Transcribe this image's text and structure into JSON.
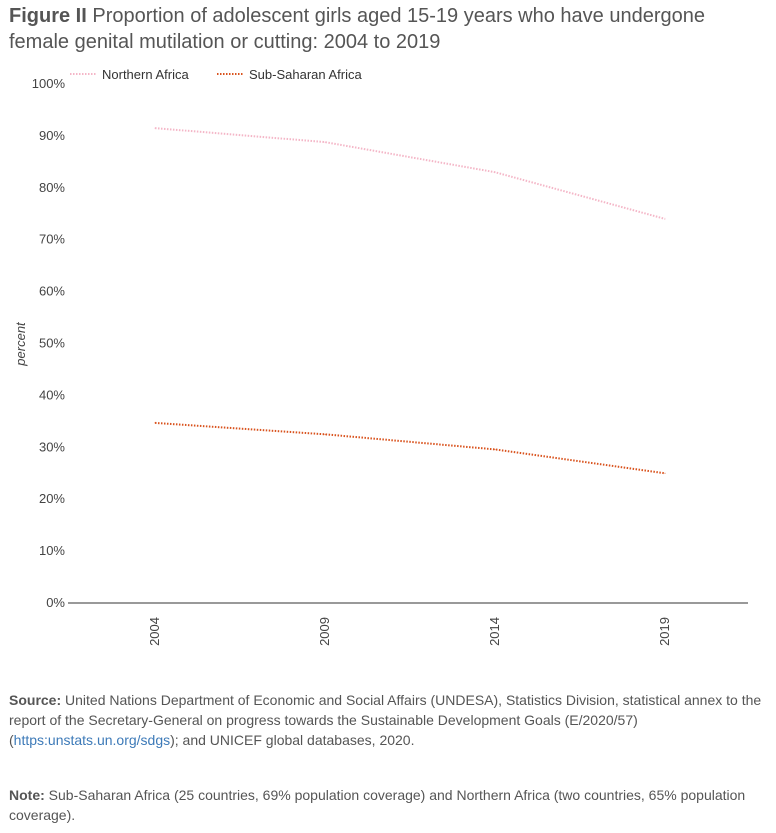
{
  "header": {
    "figure_label": "Figure II",
    "title": "Proportion of adolescent girls aged 15-19 years who have undergone female genital mutilation or cutting: 2004 to 2019"
  },
  "chart_data": {
    "type": "line",
    "categories": [
      "2004",
      "2009",
      "2014",
      "2019"
    ],
    "series": [
      {
        "name": "Northern Africa",
        "color": "#f4b6c7",
        "dash": "dotted",
        "values": [
          91.5,
          88.8,
          83.0,
          74.0
        ]
      },
      {
        "name": "Sub-Saharan Africa",
        "color": "#d9531e",
        "dash": "dotted",
        "values": [
          34.7,
          32.5,
          29.6,
          25.0
        ]
      }
    ],
    "ylabel": "percent",
    "ylim": [
      0,
      100
    ],
    "yticks": [
      "0%",
      "10%",
      "20%",
      "30%",
      "40%",
      "50%",
      "60%",
      "70%",
      "80%",
      "90%",
      "100%"
    ],
    "legend_position": "top-left"
  },
  "footer": {
    "source_label": "Source:",
    "source_text_1": "United Nations Department of Economic and Social Affairs (UNDESA), Statistics Division, statistical annex to the report of the Secretary-General on progress towards the Sustainable Development Goals (E/2020/57) (",
    "source_link": "https:unstats.un.org/sdgs",
    "source_text_2": "); and UNICEF global databases, 2020.",
    "note_label": "Note:",
    "note_text": "Sub-Saharan Africa (25 countries, 69% population coverage) and Northern Africa (two countries, 65% population coverage)."
  }
}
